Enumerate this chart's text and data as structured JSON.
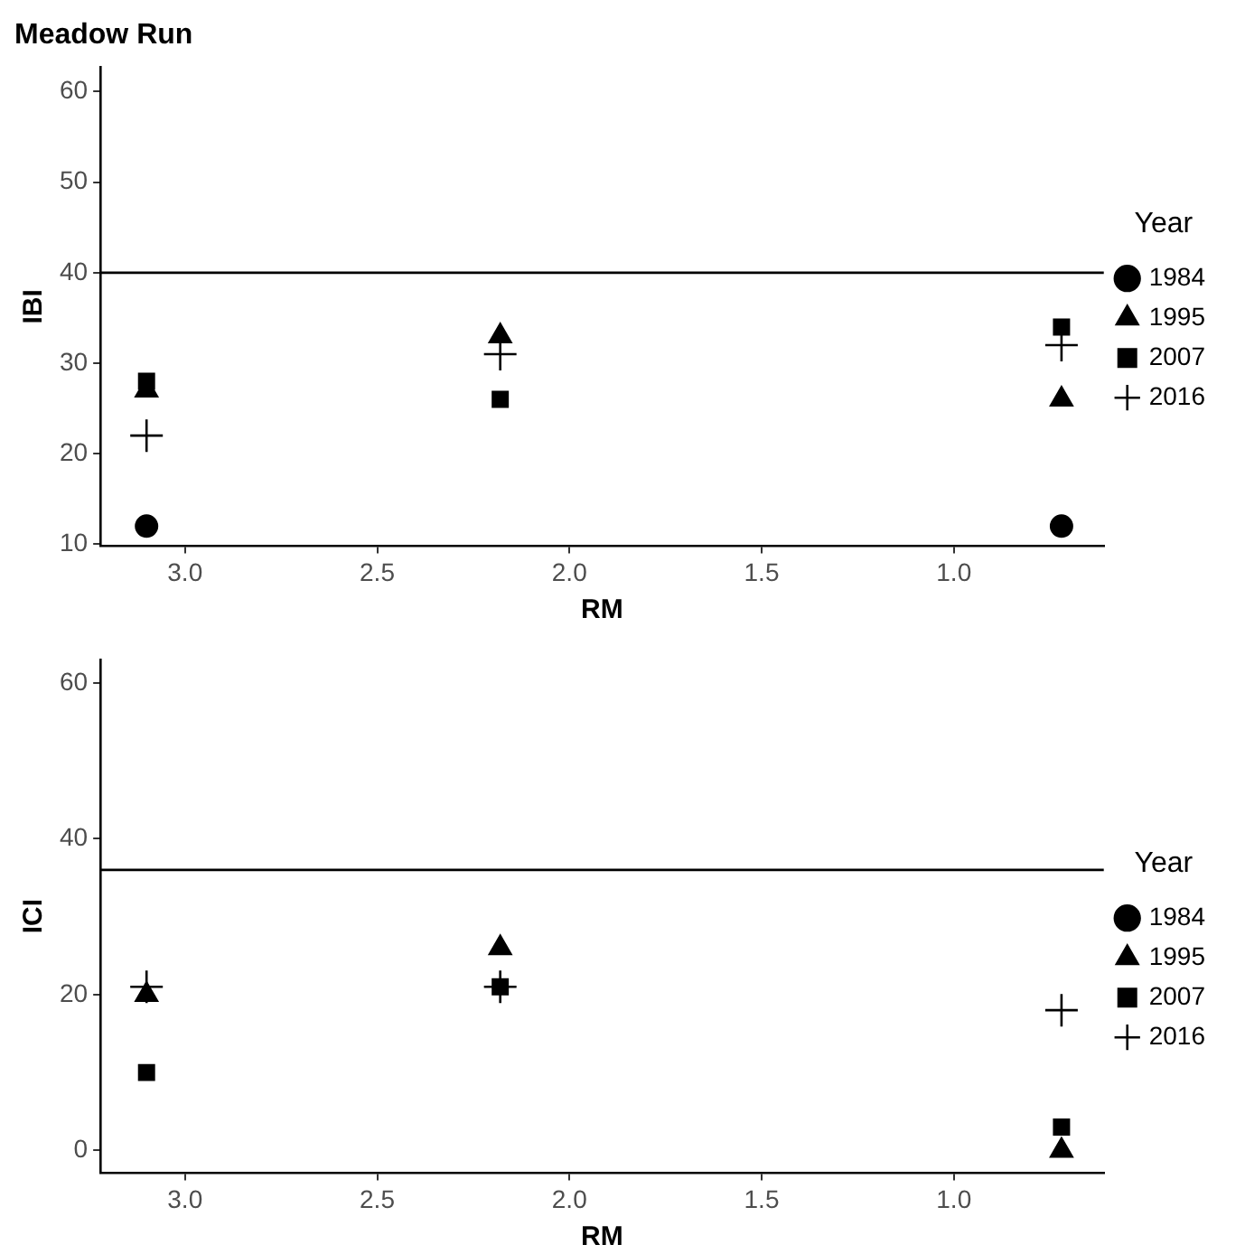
{
  "chart_data": [
    {
      "type": "scatter",
      "title": "Meadow Run",
      "xlabel": "RM",
      "ylabel": "IBI",
      "legend_title": "Year",
      "legend": "right",
      "grid": false,
      "x": [
        3.1,
        2.18,
        0.72
      ],
      "xlim": [
        3.22,
        0.61
      ],
      "xticks": [
        {
          "value": 3,
          "label": "3.0"
        },
        {
          "value": 2.5,
          "label": "2.5"
        },
        {
          "value": 2,
          "label": "2.0"
        },
        {
          "value": 1.5,
          "label": "1.5"
        },
        {
          "value": 1,
          "label": "1.0"
        }
      ],
      "ylim": [
        9.8,
        62.7
      ],
      "yticks": [
        10,
        20,
        30,
        40,
        50,
        60
      ],
      "ref_lines": [
        {
          "axis": "y",
          "value": 40,
          "color": "#000000"
        }
      ],
      "series": [
        {
          "name": "1984",
          "color": "#000000",
          "marker": "circle",
          "values": [
            12,
            null,
            12
          ]
        },
        {
          "name": "1995",
          "color": "#000000",
          "marker": "triangle",
          "values": [
            27,
            33,
            26
          ]
        },
        {
          "name": "2007",
          "color": "#000000",
          "marker": "square",
          "values": [
            28,
            26,
            34
          ]
        },
        {
          "name": "2016",
          "color": "#000000",
          "marker": "cross",
          "values": [
            22,
            31,
            32
          ]
        }
      ]
    },
    {
      "type": "scatter",
      "xlabel": "RM",
      "ylabel": "ICI",
      "legend_title": "Year",
      "legend": "right",
      "grid": false,
      "x": [
        3.1,
        2.18,
        0.72
      ],
      "xlim": [
        3.22,
        0.61
      ],
      "xticks": [
        {
          "value": 3,
          "label": "3.0"
        },
        {
          "value": 2.5,
          "label": "2.5"
        },
        {
          "value": 2,
          "label": "2.0"
        },
        {
          "value": 1.5,
          "label": "1.5"
        },
        {
          "value": 1,
          "label": "1.0"
        }
      ],
      "ylim": [
        -2.9,
        63
      ],
      "yticks": [
        0,
        20,
        40,
        60
      ],
      "ref_lines": [
        {
          "axis": "y",
          "value": 36,
          "color": "#000000"
        }
      ],
      "series": [
        {
          "name": "1984",
          "color": "#000000",
          "marker": "circle",
          "values": [
            null,
            null,
            null
          ]
        },
        {
          "name": "1995",
          "color": "#000000",
          "marker": "triangle",
          "values": [
            20,
            26,
            0
          ]
        },
        {
          "name": "2007",
          "color": "#000000",
          "marker": "square",
          "values": [
            10,
            21,
            3
          ]
        },
        {
          "name": "2016",
          "color": "#000000",
          "marker": "cross",
          "values": [
            21,
            21,
            18
          ]
        }
      ]
    }
  ]
}
